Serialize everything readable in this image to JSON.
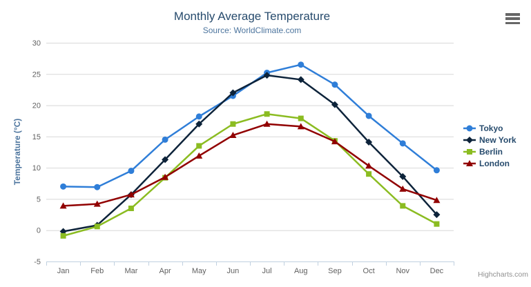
{
  "chart_data": {
    "type": "line",
    "title": "Monthly Average Temperature",
    "subtitle": "Source: WorldClimate.com",
    "categories": [
      "Jan",
      "Feb",
      "Mar",
      "Apr",
      "May",
      "Jun",
      "Jul",
      "Aug",
      "Sep",
      "Oct",
      "Nov",
      "Dec"
    ],
    "xlabel": "",
    "ylabel": "Temperature (°C)",
    "ylim": [
      -5,
      30
    ],
    "ytick_interval": 5,
    "grid": true,
    "legend_position": "right",
    "series": [
      {
        "name": "Tokyo",
        "color": "#2f7ed8",
        "marker": "circle",
        "values": [
          7.0,
          6.9,
          9.5,
          14.5,
          18.2,
          21.5,
          25.2,
          26.5,
          23.3,
          18.3,
          13.9,
          9.6
        ]
      },
      {
        "name": "New York",
        "color": "#0d233a",
        "marker": "diamond",
        "values": [
          -0.2,
          0.8,
          5.7,
          11.3,
          17.0,
          22.0,
          24.8,
          24.1,
          20.1,
          14.1,
          8.6,
          2.5
        ]
      },
      {
        "name": "Berlin",
        "color": "#8bbc21",
        "marker": "square",
        "values": [
          -0.9,
          0.6,
          3.5,
          8.4,
          13.5,
          17.0,
          18.6,
          17.9,
          14.3,
          9.0,
          3.9,
          1.0
        ]
      },
      {
        "name": "London",
        "color": "#910000",
        "marker": "triangle",
        "values": [
          3.9,
          4.2,
          5.7,
          8.5,
          11.9,
          15.2,
          17.0,
          16.6,
          14.2,
          10.3,
          6.6,
          4.8
        ]
      }
    ],
    "colors": {
      "grid": "#d8d8d8",
      "axis_line": "#c0d0e0",
      "tick_label": "#606060",
      "title": "#274b6d",
      "subtitle": "#4d759e",
      "axis_title": "#4d759e",
      "legend_text": "#274b6d",
      "credits_text": "#909090"
    },
    "credits": "Highcharts.com"
  },
  "toolbar": {
    "menu_icon": "hamburger-menu"
  }
}
